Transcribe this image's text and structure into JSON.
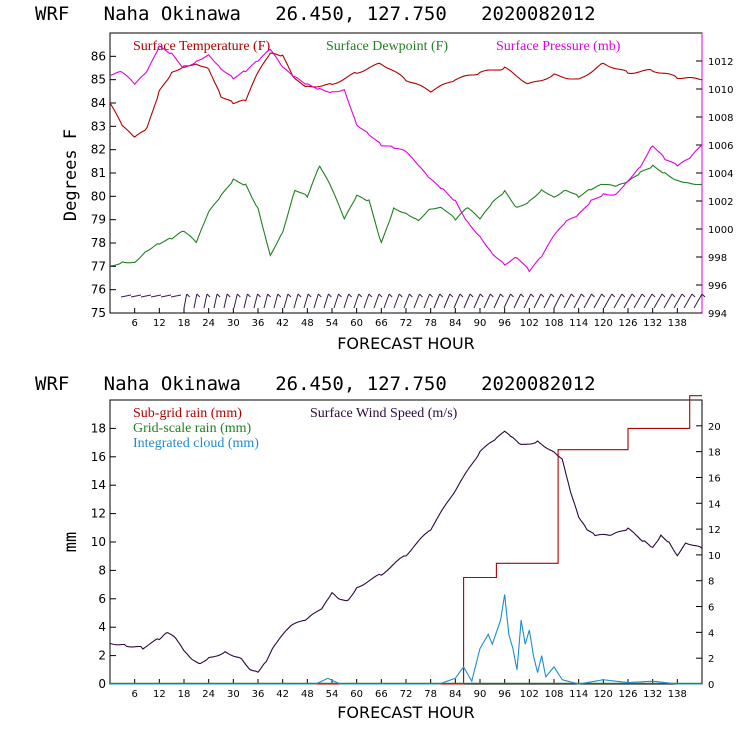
{
  "colors": {
    "temperature": "#b00000",
    "dewpoint": "#208020",
    "pressure": "#e000e0",
    "subgrid_rain": "#b00000",
    "grid_rain": "#208020",
    "cloud": "#1e8cd2",
    "wind": "#2b0a3d",
    "axis": "#000000"
  },
  "chart_data": [
    {
      "type": "line",
      "title": "WRF   Naha Okinawa   26.450, 127.750   2020082012",
      "xlabel": "FORECAST HOUR",
      "ylabel": "Degrees F",
      "xlim": [
        0,
        144
      ],
      "ylim": [
        75,
        87
      ],
      "y2lim": [
        994,
        1014
      ],
      "xticks": [
        6,
        12,
        18,
        24,
        30,
        36,
        42,
        48,
        54,
        60,
        66,
        72,
        78,
        84,
        90,
        96,
        102,
        108,
        114,
        120,
        126,
        132,
        138
      ],
      "yticks": [
        75,
        76,
        77,
        78,
        79,
        80,
        81,
        82,
        83,
        84,
        85,
        86
      ],
      "y2ticks": [
        994,
        996,
        998,
        1000,
        1002,
        1004,
        1006,
        1008,
        1010,
        1012
      ],
      "series": [
        {
          "name": "Surface Temperature (F)",
          "axis": "left",
          "x": [
            0,
            3,
            6,
            9,
            12,
            15,
            18,
            21,
            24,
            27,
            30,
            33,
            36,
            39,
            42,
            45,
            48,
            54,
            60,
            66,
            72,
            78,
            84,
            90,
            96,
            102,
            108,
            114,
            120,
            126,
            132,
            138,
            144
          ],
          "y": [
            84.0,
            83.0,
            82.5,
            82.9,
            84.5,
            85.3,
            85.6,
            85.7,
            85.5,
            84.3,
            84.0,
            84.1,
            85.3,
            86.1,
            86.0,
            85.0,
            84.7,
            84.8,
            85.3,
            85.7,
            85.0,
            84.5,
            85.0,
            85.3,
            85.5,
            84.8,
            85.2,
            85.0,
            85.7,
            85.3,
            85.4,
            85.1,
            85.0
          ]
        },
        {
          "name": "Surface Dewpoint (F)",
          "axis": "left",
          "x": [
            0,
            3,
            6,
            9,
            12,
            15,
            18,
            21,
            24,
            27,
            30,
            33,
            36,
            39,
            42,
            45,
            48,
            51,
            54,
            57,
            60,
            63,
            66,
            69,
            72,
            75,
            78,
            81,
            84,
            87,
            90,
            93,
            96,
            99,
            102,
            105,
            108,
            111,
            114,
            117,
            120,
            123,
            126,
            129,
            132,
            135,
            138,
            141,
            144
          ],
          "y": [
            77.0,
            77.2,
            77.2,
            77.7,
            78.0,
            78.2,
            78.5,
            78.0,
            79.3,
            80.0,
            80.7,
            80.5,
            79.5,
            77.5,
            78.5,
            80.3,
            80.0,
            81.3,
            80.3,
            79.0,
            80.0,
            79.8,
            78.0,
            79.5,
            79.3,
            79.0,
            79.5,
            79.5,
            79.0,
            79.5,
            79.0,
            79.7,
            80.2,
            79.5,
            79.8,
            80.3,
            80.0,
            80.3,
            80.0,
            80.3,
            80.5,
            80.4,
            80.6,
            81.0,
            81.3,
            81.0,
            80.7,
            80.6,
            80.5
          ]
        },
        {
          "name": "Surface Pressure (mb)",
          "axis": "right",
          "x": [
            0,
            3,
            6,
            9,
            12,
            15,
            18,
            21,
            24,
            27,
            30,
            33,
            36,
            39,
            42,
            45,
            48,
            51,
            54,
            57,
            60,
            63,
            66,
            69,
            72,
            75,
            78,
            81,
            84,
            87,
            90,
            93,
            96,
            99,
            102,
            105,
            108,
            111,
            114,
            117,
            120,
            123,
            126,
            129,
            132,
            135,
            138,
            141,
            144
          ],
          "y": [
            1011.0,
            1011.2,
            1010.3,
            1011.2,
            1013.0,
            1012.5,
            1011.5,
            1012.0,
            1012.5,
            1011.5,
            1010.8,
            1011.3,
            1012.0,
            1012.8,
            1011.5,
            1010.8,
            1010.3,
            1010.0,
            1009.8,
            1010.0,
            1007.5,
            1006.8,
            1006.0,
            1005.8,
            1005.5,
            1004.5,
            1003.5,
            1002.8,
            1002.0,
            1000.5,
            999.5,
            998.3,
            997.5,
            998.0,
            997.0,
            998.0,
            999.5,
            1000.5,
            1001.0,
            1002.0,
            1002.5,
            1002.5,
            1003.5,
            1004.5,
            1006.0,
            1005.0,
            1004.5,
            1005.0,
            1006.0
          ]
        }
      ]
    },
    {
      "type": "line",
      "title": "WRF   Naha Okinawa   26.450, 127.750   2020082012",
      "xlabel": "FORECAST HOUR",
      "ylabel": "mm",
      "xlim": [
        0,
        144
      ],
      "ylim": [
        0,
        20
      ],
      "y2lim": [
        0,
        22
      ],
      "xticks": [
        6,
        12,
        18,
        24,
        30,
        36,
        42,
        48,
        54,
        60,
        66,
        72,
        78,
        84,
        90,
        96,
        102,
        108,
        114,
        120,
        126,
        132,
        138
      ],
      "yticks": [
        0,
        2,
        4,
        6,
        8,
        10,
        12,
        14,
        16,
        18
      ],
      "y2ticks": [
        0,
        2,
        4,
        6,
        8,
        10,
        12,
        14,
        16,
        18,
        20
      ],
      "series": [
        {
          "name": "Sub-grid rain (mm)",
          "axis": "left",
          "step": true,
          "x": [
            0,
            86,
            86,
            94,
            94,
            109,
            109,
            126,
            126,
            141,
            141,
            144
          ],
          "y": [
            0,
            0,
            7.5,
            7.5,
            8.5,
            8.5,
            16.5,
            16.5,
            18.0,
            18.0,
            20.3,
            20.3
          ]
        },
        {
          "name": "Grid-scale rain (mm)",
          "axis": "left",
          "x": [
            0,
            144
          ],
          "y": [
            0.05,
            0.05
          ]
        },
        {
          "name": "Integrated cloud (mm)",
          "axis": "left",
          "x": [
            0,
            50,
            53,
            56,
            80,
            84,
            86,
            88,
            90,
            92,
            93,
            95,
            96,
            97,
            98,
            99,
            100,
            101,
            102,
            103,
            104,
            105,
            106,
            108,
            110,
            114,
            120,
            126,
            132,
            138,
            144
          ],
          "y": [
            0,
            0,
            0.4,
            0,
            0,
            0.4,
            1.2,
            0.2,
            2.5,
            3.5,
            2.8,
            4.5,
            6.3,
            3.5,
            2.5,
            1.0,
            4.5,
            2.8,
            3.8,
            2.0,
            0.8,
            2.0,
            0.5,
            1.2,
            0.3,
            0,
            0.3,
            0.1,
            0.2,
            0,
            0
          ]
        },
        {
          "name": "Surface Wind Speed (m/s)",
          "axis": "right",
          "x": [
            0,
            4,
            8,
            12,
            14,
            16,
            18,
            20,
            22,
            24,
            28,
            32,
            34,
            36,
            38,
            40,
            44,
            48,
            52,
            54,
            56,
            58,
            60,
            66,
            72,
            78,
            84,
            90,
            94,
            96,
            98,
            100,
            104,
            108,
            110,
            112,
            114,
            116,
            118,
            122,
            126,
            130,
            132,
            134,
            136,
            138,
            140,
            144
          ],
          "y": [
            3.2,
            3.0,
            2.8,
            3.5,
            4.0,
            3.5,
            2.5,
            1.8,
            1.5,
            2.0,
            2.5,
            2.0,
            1.2,
            1.0,
            1.8,
            3.0,
            4.5,
            5.0,
            6.0,
            7.0,
            6.5,
            6.5,
            7.5,
            8.5,
            10.0,
            12.0,
            15.0,
            18.0,
            19.0,
            19.5,
            19.0,
            18.5,
            18.8,
            18.0,
            17.5,
            15.0,
            13.0,
            12.0,
            11.5,
            11.5,
            12.0,
            11.0,
            10.5,
            11.5,
            11.0,
            10.0,
            11.0,
            10.5
          ]
        }
      ]
    }
  ]
}
